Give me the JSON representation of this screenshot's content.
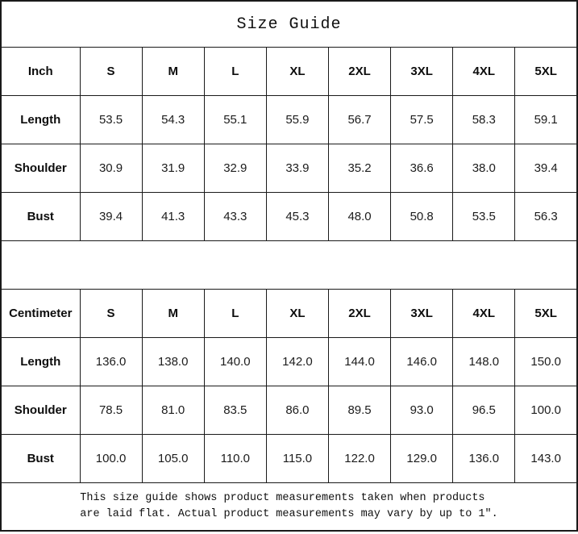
{
  "title": "Size Guide",
  "sizes": [
    "S",
    "M",
    "L",
    "XL",
    "2XL",
    "3XL",
    "4XL",
    "5XL"
  ],
  "inch": {
    "unit_label": "Inch",
    "rows": [
      {
        "label": "Length",
        "values": [
          "53.5",
          "54.3",
          "55.1",
          "55.9",
          "56.7",
          "57.5",
          "58.3",
          "59.1"
        ]
      },
      {
        "label": "Shoulder",
        "values": [
          "30.9",
          "31.9",
          "32.9",
          "33.9",
          "35.2",
          "36.6",
          "38.0",
          "39.4"
        ]
      },
      {
        "label": "Bust",
        "values": [
          "39.4",
          "41.3",
          "43.3",
          "45.3",
          "48.0",
          "50.8",
          "53.5",
          "56.3"
        ]
      }
    ]
  },
  "cm": {
    "unit_label": "Centimeter",
    "rows": [
      {
        "label": "Length",
        "values": [
          "136.0",
          "138.0",
          "140.0",
          "142.0",
          "144.0",
          "146.0",
          "148.0",
          "150.0"
        ]
      },
      {
        "label": "Shoulder",
        "values": [
          "78.5",
          "81.0",
          "83.5",
          "86.0",
          "89.5",
          "93.0",
          "96.5",
          "100.0"
        ]
      },
      {
        "label": "Bust",
        "values": [
          "100.0",
          "105.0",
          "110.0",
          "115.0",
          "122.0",
          "129.0",
          "136.0",
          "143.0"
        ]
      }
    ]
  },
  "footer": {
    "line1": "This size guide shows product measurements taken when products",
    "line2": "are laid flat. Actual product measurements may vary by up to 1″."
  },
  "colors": {
    "border": "#1a1a1a",
    "text": "#141414",
    "background": "#ffffff"
  }
}
